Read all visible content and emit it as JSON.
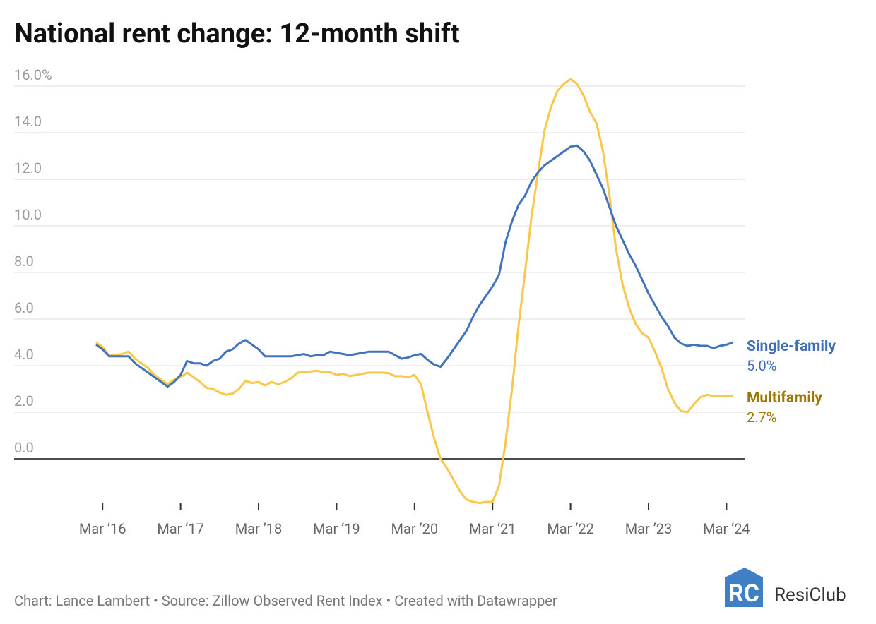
{
  "chart_data": {
    "type": "line",
    "title": "National rent change: 12-month shift",
    "source": "Chart: Lance Lambert • Source: Zillow Observed Rent Index • Created with Datawrapper",
    "categories": [
      null,
      "Mar ’16",
      null,
      null,
      null,
      null,
      null,
      null,
      null,
      null,
      null,
      null,
      null,
      "Mar ’17",
      null,
      null,
      null,
      null,
      null,
      null,
      null,
      null,
      null,
      null,
      null,
      "Mar ’18",
      null,
      null,
      null,
      null,
      null,
      null,
      null,
      null,
      null,
      null,
      null,
      "Mar ’19",
      null,
      null,
      null,
      null,
      null,
      null,
      null,
      null,
      null,
      null,
      null,
      "Mar ’20",
      null,
      null,
      null,
      null,
      null,
      null,
      null,
      null,
      null,
      null,
      null,
      "Mar ’21",
      null,
      null,
      null,
      null,
      null,
      null,
      null,
      null,
      null,
      null,
      null,
      "Mar ’22",
      null,
      null,
      null,
      null,
      null,
      null,
      null,
      null,
      null,
      null,
      null,
      "Mar ’23",
      null,
      null,
      null,
      null,
      null,
      null,
      null,
      null,
      null,
      null,
      null,
      "Mar ’24",
      null
    ],
    "series": [
      {
        "name": "Single-family",
        "color": "#4174bc",
        "label_color": "#3f6fb5",
        "values": [
          4.9,
          4.7,
          4.4,
          4.4,
          4.4,
          4.4,
          4.1,
          3.9,
          3.7,
          3.5,
          3.3,
          3.1,
          3.3,
          3.6,
          4.2,
          4.1,
          4.1,
          4.0,
          4.2,
          4.3,
          4.6,
          4.7,
          4.95,
          5.1,
          4.9,
          4.7,
          4.4,
          4.4,
          4.4,
          4.4,
          4.4,
          4.45,
          4.5,
          4.4,
          4.45,
          4.45,
          4.6,
          4.55,
          4.5,
          4.45,
          4.5,
          4.55,
          4.6,
          4.6,
          4.6,
          4.6,
          4.45,
          4.3,
          4.35,
          4.45,
          4.5,
          4.25,
          4.05,
          3.95,
          4.3,
          4.7,
          5.1,
          5.5,
          6.1,
          6.6,
          7.0,
          7.4,
          7.9,
          9.3,
          10.2,
          10.9,
          11.3,
          11.9,
          12.3,
          12.6,
          12.8,
          13.0,
          13.2,
          13.4,
          13.45,
          13.2,
          12.8,
          12.2,
          11.6,
          10.8,
          10.0,
          9.4,
          8.8,
          8.3,
          7.7,
          7.1,
          6.6,
          6.1,
          5.7,
          5.2,
          4.95,
          4.85,
          4.9,
          4.85,
          4.85,
          4.75,
          4.85,
          4.9,
          5.0
        ],
        "value_labels": [
          null,
          null,
          null,
          null,
          null,
          null,
          null,
          null,
          null,
          null,
          null,
          null,
          null,
          null,
          null,
          null,
          null,
          null,
          null,
          null,
          null,
          null,
          null,
          null,
          null,
          null,
          null,
          null,
          null,
          null,
          null,
          null,
          null,
          null,
          null,
          null,
          null,
          null,
          null,
          null,
          null,
          null,
          null,
          null,
          null,
          null,
          null,
          null,
          null,
          null,
          null,
          null,
          null,
          null,
          null,
          null,
          null,
          null,
          null,
          null,
          null,
          null,
          null,
          null,
          null,
          null,
          null,
          null,
          null,
          null,
          null,
          null,
          null,
          null,
          null,
          null,
          null,
          null,
          null,
          null,
          null,
          null,
          null,
          null,
          null,
          null,
          null,
          null,
          null,
          null,
          null,
          null,
          null,
          null,
          null,
          null,
          null,
          null,
          "5.0%"
        ]
      },
      {
        "name": "Multifamily",
        "color": "#f9c74a",
        "label_color": "#9c7800",
        "values": [
          5.0,
          4.8,
          4.45,
          4.45,
          4.5,
          4.6,
          4.3,
          4.1,
          3.9,
          3.6,
          3.4,
          3.2,
          3.4,
          3.5,
          3.7,
          3.5,
          3.3,
          3.05,
          3.0,
          2.85,
          2.75,
          2.8,
          3.0,
          3.35,
          3.25,
          3.3,
          3.15,
          3.3,
          3.2,
          3.3,
          3.45,
          3.7,
          3.72,
          3.75,
          3.78,
          3.72,
          3.72,
          3.6,
          3.65,
          3.55,
          3.6,
          3.65,
          3.7,
          3.7,
          3.7,
          3.68,
          3.55,
          3.55,
          3.5,
          3.6,
          3.2,
          2.0,
          0.9,
          0.0,
          -0.4,
          -0.9,
          -1.4,
          -1.75,
          -1.85,
          -1.9,
          -1.85,
          -1.85,
          -1.15,
          0.7,
          3.0,
          5.7,
          8.0,
          10.4,
          12.3,
          14.1,
          15.1,
          15.8,
          16.1,
          16.3,
          16.1,
          15.6,
          14.9,
          14.4,
          13.2,
          11.3,
          9.0,
          7.5,
          6.5,
          5.8,
          5.4,
          5.2,
          4.6,
          3.9,
          3.0,
          2.4,
          2.05,
          2.0,
          2.35,
          2.65,
          2.75,
          2.7,
          2.7,
          2.7,
          2.7
        ],
        "value_labels": [
          null,
          null,
          null,
          null,
          null,
          null,
          null,
          null,
          null,
          null,
          null,
          null,
          null,
          null,
          null,
          null,
          null,
          null,
          null,
          null,
          null,
          null,
          null,
          null,
          null,
          null,
          null,
          null,
          null,
          null,
          null,
          null,
          null,
          null,
          null,
          null,
          null,
          null,
          null,
          null,
          null,
          null,
          null,
          null,
          null,
          null,
          null,
          null,
          null,
          null,
          null,
          null,
          null,
          null,
          null,
          null,
          null,
          null,
          null,
          null,
          null,
          null,
          null,
          null,
          null,
          null,
          null,
          null,
          null,
          null,
          null,
          null,
          null,
          null,
          null,
          null,
          null,
          null,
          null,
          null,
          null,
          null,
          null,
          null,
          null,
          null,
          null,
          null,
          null,
          null,
          null,
          null,
          null,
          null,
          null,
          null,
          null,
          null,
          "2.7%"
        ]
      }
    ],
    "ylim": [
      -2,
      16.5
    ],
    "yticks": [
      {
        "value": 0,
        "label": "0.0"
      },
      {
        "value": 2,
        "label": "2.0"
      },
      {
        "value": 4,
        "label": "4.0"
      },
      {
        "value": 6,
        "label": "6.0"
      },
      {
        "value": 8,
        "label": "8.0"
      },
      {
        "value": 10,
        "label": "10.0"
      },
      {
        "value": 12,
        "label": "12.0"
      },
      {
        "value": 14,
        "label": "14.0"
      },
      {
        "value": 16,
        "label": "16.0%"
      }
    ],
    "grid": true
  },
  "logo": {
    "mark": "RC",
    "name": "ResiClub"
  }
}
